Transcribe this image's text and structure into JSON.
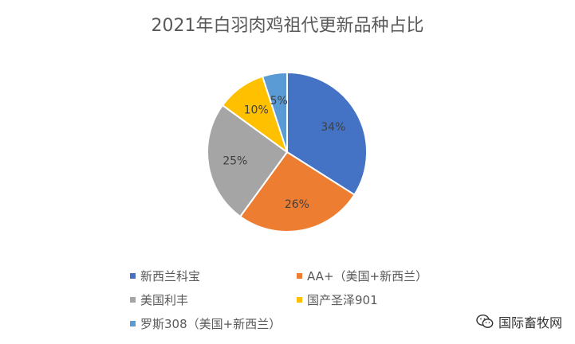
{
  "chart_data": {
    "type": "pie",
    "title": "2021年白羽肉鸡祖代更新品种占比",
    "slices": [
      {
        "label": "新西兰科宝",
        "value": 34,
        "data_label": "34%",
        "color": "#4472C4"
      },
      {
        "label": "AA+（美国+新西兰）",
        "value": 26,
        "data_label": "26%",
        "color": "#ED7D31"
      },
      {
        "label": "美国利丰",
        "value": 25,
        "data_label": "25%",
        "color": "#A5A5A5"
      },
      {
        "label": "国产圣泽901",
        "value": 10,
        "data_label": "10%",
        "color": "#FFC000"
      },
      {
        "label": "罗斯308（美国+新西兰）",
        "value": 5,
        "data_label": "5%",
        "color": "#5B9BD5"
      }
    ],
    "legend_position": "bottom"
  },
  "watermark": {
    "text": "国际畜牧网",
    "icon": "wechat-icon"
  }
}
